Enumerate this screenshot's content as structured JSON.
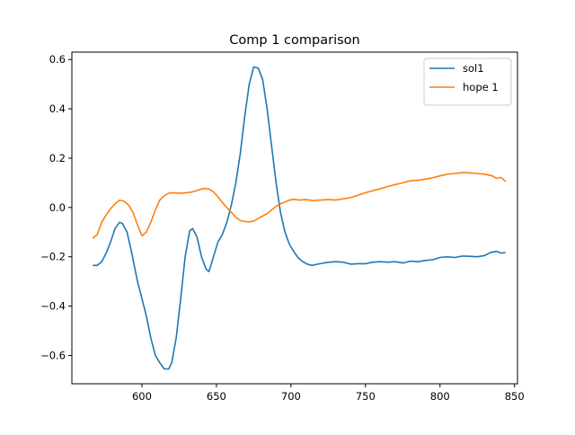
{
  "chart_data": {
    "type": "line",
    "title": "Comp 1 comparison",
    "xlabel": "",
    "ylabel": "",
    "xlim": [
      553,
      852
    ],
    "ylim": [
      -0.715,
      0.63
    ],
    "xticks": [
      600,
      650,
      700,
      750,
      800,
      850
    ],
    "yticks": [
      -0.6,
      -0.4,
      -0.2,
      0.0,
      0.2,
      0.4,
      0.6
    ],
    "grid": false,
    "legend_position": "top-right",
    "series": [
      {
        "name": "sol1",
        "color": "#1f77b4",
        "points": [
          [
            567,
            -0.235
          ],
          [
            570,
            -0.235
          ],
          [
            573,
            -0.22
          ],
          [
            576,
            -0.185
          ],
          [
            579,
            -0.14
          ],
          [
            582,
            -0.085
          ],
          [
            585,
            -0.06
          ],
          [
            587,
            -0.065
          ],
          [
            590,
            -0.1
          ],
          [
            593,
            -0.18
          ],
          [
            597,
            -0.3
          ],
          [
            600,
            -0.37
          ],
          [
            603,
            -0.44
          ],
          [
            606,
            -0.53
          ],
          [
            609,
            -0.6
          ],
          [
            612,
            -0.63
          ],
          [
            615,
            -0.655
          ],
          [
            618,
            -0.655
          ],
          [
            620,
            -0.63
          ],
          [
            623,
            -0.53
          ],
          [
            626,
            -0.37
          ],
          [
            629,
            -0.2
          ],
          [
            632,
            -0.095
          ],
          [
            634,
            -0.085
          ],
          [
            637,
            -0.12
          ],
          [
            640,
            -0.2
          ],
          [
            643,
            -0.25
          ],
          [
            645,
            -0.26
          ],
          [
            648,
            -0.2
          ],
          [
            651,
            -0.14
          ],
          [
            654,
            -0.11
          ],
          [
            657,
            -0.06
          ],
          [
            660,
            0.01
          ],
          [
            663,
            0.1
          ],
          [
            666,
            0.22
          ],
          [
            669,
            0.37
          ],
          [
            672,
            0.5
          ],
          [
            675,
            0.57
          ],
          [
            678,
            0.565
          ],
          [
            681,
            0.52
          ],
          [
            684,
            0.4
          ],
          [
            687,
            0.25
          ],
          [
            690,
            0.1
          ],
          [
            693,
            -0.02
          ],
          [
            696,
            -0.1
          ],
          [
            699,
            -0.15
          ],
          [
            702,
            -0.18
          ],
          [
            705,
            -0.205
          ],
          [
            708,
            -0.22
          ],
          [
            711,
            -0.23
          ],
          [
            714,
            -0.235
          ],
          [
            718,
            -0.23
          ],
          [
            722,
            -0.225
          ],
          [
            726,
            -0.222
          ],
          [
            730,
            -0.22
          ],
          [
            735,
            -0.222
          ],
          [
            740,
            -0.23
          ],
          [
            745,
            -0.228
          ],
          [
            750,
            -0.228
          ],
          [
            755,
            -0.222
          ],
          [
            760,
            -0.22
          ],
          [
            765,
            -0.222
          ],
          [
            770,
            -0.22
          ],
          [
            775,
            -0.225
          ],
          [
            780,
            -0.218
          ],
          [
            785,
            -0.22
          ],
          [
            790,
            -0.215
          ],
          [
            795,
            -0.212
          ],
          [
            800,
            -0.203
          ],
          [
            805,
            -0.2
          ],
          [
            810,
            -0.203
          ],
          [
            815,
            -0.197
          ],
          [
            820,
            -0.198
          ],
          [
            825,
            -0.2
          ],
          [
            830,
            -0.195
          ],
          [
            834,
            -0.182
          ],
          [
            838,
            -0.178
          ],
          [
            841,
            -0.185
          ],
          [
            844,
            -0.183
          ]
        ]
      },
      {
        "name": "hope 1",
        "color": "#ff7f0e",
        "points": [
          [
            567,
            -0.125
          ],
          [
            570,
            -0.11
          ],
          [
            573,
            -0.06
          ],
          [
            576,
            -0.03
          ],
          [
            579,
            -0.005
          ],
          [
            582,
            0.015
          ],
          [
            585,
            0.03
          ],
          [
            588,
            0.025
          ],
          [
            591,
            0.01
          ],
          [
            594,
            -0.02
          ],
          [
            597,
            -0.07
          ],
          [
            600,
            -0.115
          ],
          [
            603,
            -0.1
          ],
          [
            606,
            -0.06
          ],
          [
            609,
            -0.01
          ],
          [
            612,
            0.03
          ],
          [
            615,
            0.048
          ],
          [
            618,
            0.058
          ],
          [
            621,
            0.06
          ],
          [
            624,
            0.058
          ],
          [
            627,
            0.058
          ],
          [
            630,
            0.06
          ],
          [
            633,
            0.062
          ],
          [
            636,
            0.067
          ],
          [
            639,
            0.073
          ],
          [
            642,
            0.077
          ],
          [
            645,
            0.075
          ],
          [
            648,
            0.063
          ],
          [
            651,
            0.043
          ],
          [
            654,
            0.02
          ],
          [
            657,
            0.0
          ],
          [
            660,
            -0.02
          ],
          [
            663,
            -0.04
          ],
          [
            666,
            -0.053
          ],
          [
            669,
            -0.057
          ],
          [
            672,
            -0.058
          ],
          [
            675,
            -0.055
          ],
          [
            678,
            -0.045
          ],
          [
            681,
            -0.035
          ],
          [
            684,
            -0.025
          ],
          [
            687,
            -0.01
          ],
          [
            690,
            0.005
          ],
          [
            693,
            0.015
          ],
          [
            696,
            0.022
          ],
          [
            699,
            0.03
          ],
          [
            702,
            0.033
          ],
          [
            706,
            0.03
          ],
          [
            710,
            0.032
          ],
          [
            715,
            0.028
          ],
          [
            720,
            0.03
          ],
          [
            725,
            0.032
          ],
          [
            730,
            0.03
          ],
          [
            735,
            0.035
          ],
          [
            740,
            0.04
          ],
          [
            745,
            0.05
          ],
          [
            750,
            0.06
          ],
          [
            755,
            0.068
          ],
          [
            760,
            0.076
          ],
          [
            765,
            0.085
          ],
          [
            770,
            0.093
          ],
          [
            775,
            0.1
          ],
          [
            780,
            0.108
          ],
          [
            785,
            0.11
          ],
          [
            790,
            0.115
          ],
          [
            795,
            0.12
          ],
          [
            800,
            0.128
          ],
          [
            805,
            0.135
          ],
          [
            810,
            0.138
          ],
          [
            815,
            0.142
          ],
          [
            820,
            0.14
          ],
          [
            825,
            0.138
          ],
          [
            830,
            0.135
          ],
          [
            835,
            0.128
          ],
          [
            838,
            0.118
          ],
          [
            841,
            0.122
          ],
          [
            844,
            0.105
          ]
        ]
      }
    ]
  }
}
